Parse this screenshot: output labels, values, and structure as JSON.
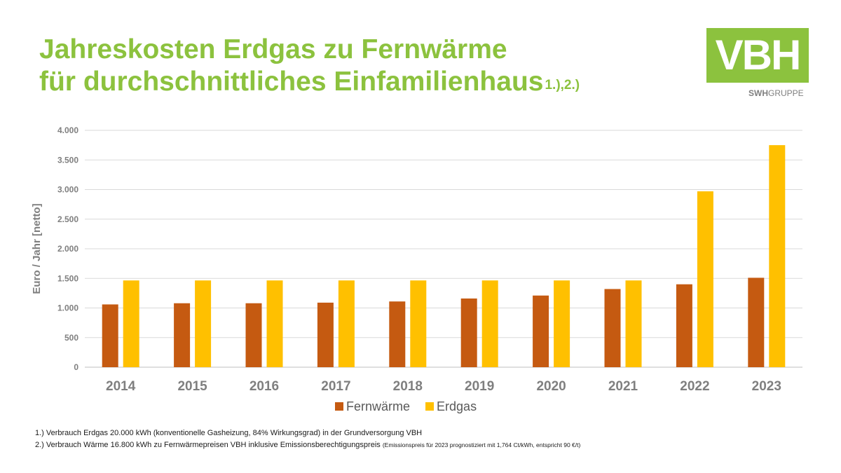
{
  "title": {
    "line1": "Jahreskosten Erdgas zu Fernwärme",
    "line2": "für durchschnittliches Einfamilienhaus",
    "sup": "1.),2.)"
  },
  "logo": {
    "text": "VBH",
    "sub_bold": "SWH",
    "sub_rest": "GRUPPE",
    "color": "#8cc23e"
  },
  "chart_data": {
    "type": "bar",
    "title": "",
    "xlabel": "",
    "ylabel": "Euro / Jahr [netto]",
    "categories": [
      "2014",
      "2015",
      "2016",
      "2017",
      "2018",
      "2019",
      "2020",
      "2021",
      "2022",
      "2023"
    ],
    "series": [
      {
        "name": "Fernwärme",
        "color": "#c55a11",
        "values": [
          1060,
          1080,
          1080,
          1090,
          1110,
          1160,
          1210,
          1320,
          1400,
          1510
        ]
      },
      {
        "name": "Erdgas",
        "color": "#ffc000",
        "values": [
          1465,
          1465,
          1465,
          1465,
          1465,
          1465,
          1465,
          1465,
          2970,
          3750
        ]
      }
    ],
    "ylim": [
      0,
      4000
    ],
    "yticks": [
      0,
      500,
      1000,
      1500,
      2000,
      2500,
      3000,
      3500,
      4000
    ],
    "ytick_labels": [
      "0",
      "500",
      "1.000",
      "1.500",
      "2.000",
      "2.500",
      "3.000",
      "3.500",
      "4.000"
    ],
    "grid": true,
    "legend_position": "bottom"
  },
  "footnotes": {
    "note1": "1.) Verbrauch Erdgas 20.000 kWh (konventionelle Gasheizung, 84% Wirkungsgrad) in der Grundversorgung VBH",
    "note2_main": "2.) Verbrauch Wärme 16.800 kWh zu Fernwärmepreisen VBH inklusive Emissionsberechtigungspreis",
    "note2_small": "(Emissionspreis für 2023 prognostiziert mit 1,764 Ct/kWh, entspricht 90 €/t)"
  }
}
